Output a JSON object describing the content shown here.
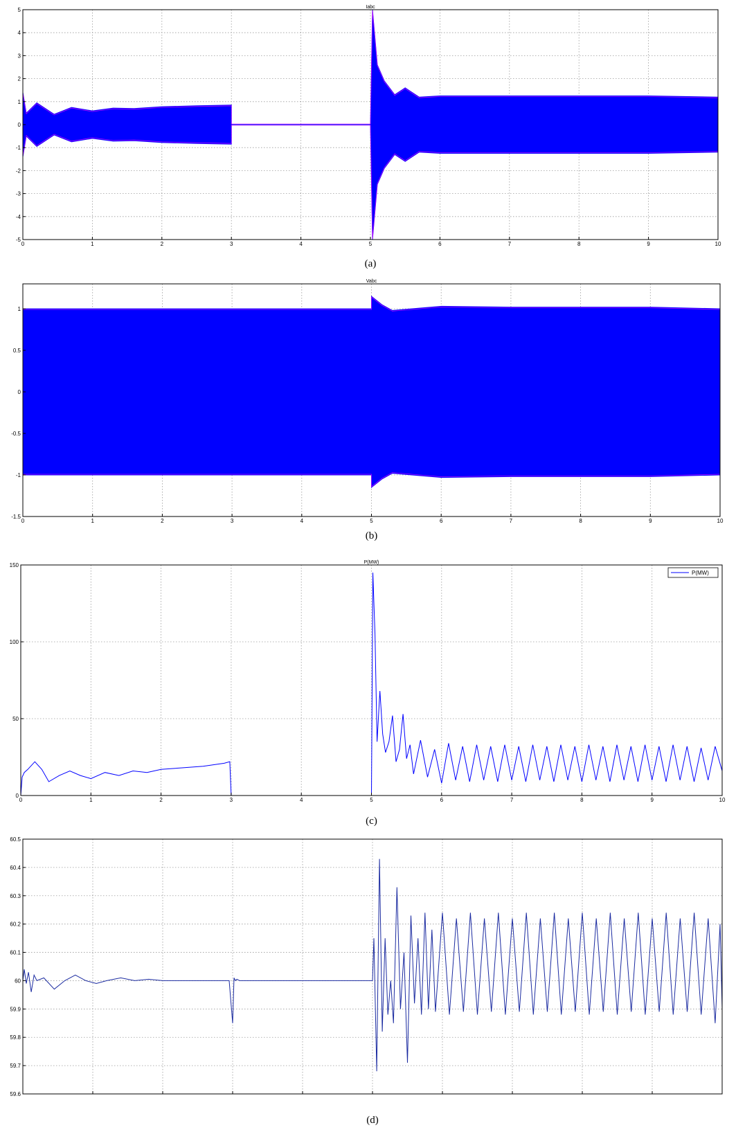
{
  "chart_data": [
    {
      "id": "a",
      "type": "line",
      "title": "Iabc",
      "caption": "(a)",
      "xlim": [
        0,
        10
      ],
      "ylim": [
        -5,
        5
      ],
      "xticks": [
        0,
        1,
        2,
        3,
        4,
        5,
        6,
        7,
        8,
        9,
        10
      ],
      "yticks": [
        -5,
        -4,
        -3,
        -2,
        -1,
        0,
        1,
        2,
        3,
        4,
        5
      ],
      "grid": true,
      "series_colors": [
        "#0000ff",
        "#ff00ff"
      ],
      "x": [
        0,
        0.05,
        0.2,
        0.45,
        0.7,
        1.0,
        1.3,
        1.6,
        2.0,
        2.5,
        3.0,
        3.0,
        5.0,
        5.03,
        5.1,
        5.2,
        5.35,
        5.5,
        5.7,
        6.0,
        7.0,
        8.0,
        9.0,
        10.0
      ],
      "envelope": [
        1.4,
        0.5,
        0.95,
        0.45,
        0.75,
        0.6,
        0.72,
        0.7,
        0.78,
        0.82,
        0.85,
        0,
        0,
        5.0,
        2.6,
        1.9,
        1.3,
        1.6,
        1.2,
        1.25,
        1.25,
        1.25,
        1.25,
        1.2
      ]
    },
    {
      "id": "b",
      "type": "line",
      "title": "Vabc",
      "caption": "(b)",
      "xlim": [
        0,
        10
      ],
      "ylim": [
        -1.5,
        1.3
      ],
      "xticks": [
        0,
        1,
        2,
        3,
        4,
        5,
        6,
        7,
        8,
        9,
        10
      ],
      "yticks": [
        -1.5,
        -1,
        -0.5,
        0,
        0.5,
        1
      ],
      "grid": true,
      "series_colors": [
        "#0000ff",
        "#ff00ff"
      ],
      "x": [
        0,
        5.0,
        5.0,
        5.15,
        5.3,
        6.0,
        7.0,
        8.0,
        9.0,
        10.0
      ],
      "envelope": [
        1.0,
        1.0,
        1.15,
        1.05,
        0.98,
        1.03,
        1.02,
        1.02,
        1.02,
        1.0
      ]
    },
    {
      "id": "c",
      "type": "line",
      "title": "P(MW)",
      "caption": "(c)",
      "xlim": [
        0,
        10
      ],
      "ylim": [
        0,
        150
      ],
      "xticks": [
        0,
        1,
        2,
        3,
        4,
        5,
        6,
        7,
        8,
        9,
        10
      ],
      "yticks": [
        0,
        50,
        100,
        150
      ],
      "grid": true,
      "legend": {
        "position": "top-right",
        "entries": [
          "P(MW)"
        ]
      },
      "series": [
        {
          "name": "P(MW)",
          "color": "#0000ff",
          "x": [
            0,
            0.02,
            0.05,
            0.1,
            0.2,
            0.3,
            0.4,
            0.55,
            0.7,
            0.85,
            1.0,
            1.2,
            1.4,
            1.6,
            1.8,
            2.0,
            2.3,
            2.6,
            2.9,
            2.98,
            3.0,
            3.02,
            5.0,
            5.02,
            5.05,
            5.08,
            5.12,
            5.16,
            5.2,
            5.25,
            5.3,
            5.35,
            5.4,
            5.45,
            5.5,
            5.55,
            5.6,
            5.7,
            5.8,
            5.9,
            6.0,
            6.1,
            6.2,
            6.3,
            6.4,
            6.5,
            6.6,
            6.7,
            6.8,
            6.9,
            7.0,
            7.1,
            7.2,
            7.3,
            7.4,
            7.5,
            7.6,
            7.7,
            7.8,
            7.9,
            8.0,
            8.1,
            8.2,
            8.3,
            8.4,
            8.5,
            8.6,
            8.7,
            8.8,
            8.9,
            9.0,
            9.1,
            9.2,
            9.3,
            9.4,
            9.5,
            9.6,
            9.7,
            9.8,
            9.9,
            10.0
          ],
          "values": [
            0,
            12,
            15,
            17,
            22,
            17,
            9,
            13,
            16,
            13,
            11,
            15,
            13,
            16,
            15,
            17,
            18,
            19,
            21,
            22,
            0,
            0,
            0,
            145,
            105,
            35,
            68,
            40,
            28,
            35,
            52,
            22,
            30,
            53,
            24,
            33,
            14,
            36,
            12,
            30,
            8,
            34,
            10,
            32,
            9,
            33,
            10,
            32,
            9,
            33,
            10,
            32,
            9,
            33,
            10,
            32,
            9,
            33,
            10,
            32,
            9,
            33,
            10,
            32,
            9,
            33,
            10,
            32,
            9,
            33,
            10,
            32,
            9,
            33,
            10,
            32,
            9,
            31,
            10,
            32,
            16
          ]
        }
      ]
    },
    {
      "id": "d",
      "type": "line",
      "title": "",
      "caption": "(d)",
      "xlim": [
        0,
        10
      ],
      "ylim": [
        59.6,
        60.5
      ],
      "xticks": [],
      "yticks": [
        59.6,
        59.7,
        59.8,
        59.9,
        60,
        60.1,
        60.2,
        60.3,
        60.4,
        60.5
      ],
      "ytick_labels": [
        "59.6",
        "59.7",
        "59.8",
        "59.9",
        "60",
        "60.1",
        "60.2",
        "60.3",
        "60.4",
        "60.5"
      ],
      "grid": true,
      "series": [
        {
          "color": "#1a2aa0",
          "x": [
            0,
            0.02,
            0.05,
            0.08,
            0.12,
            0.16,
            0.2,
            0.3,
            0.45,
            0.6,
            0.75,
            0.9,
            1.05,
            1.2,
            1.4,
            1.6,
            1.8,
            2.0,
            2.5,
            2.95,
            3.0,
            3.02,
            3.04,
            3.06,
            3.1,
            3.2,
            5.0,
            5.02,
            5.06,
            5.1,
            5.14,
            5.18,
            5.22,
            5.26,
            5.3,
            5.35,
            5.4,
            5.45,
            5.5,
            5.55,
            5.6,
            5.65,
            5.7,
            5.75,
            5.8,
            5.85,
            5.9,
            6.0,
            6.1,
            6.2,
            6.3,
            6.4,
            6.5,
            6.6,
            6.7,
            6.8,
            6.9,
            7.0,
            7.1,
            7.2,
            7.3,
            7.4,
            7.5,
            7.6,
            7.7,
            7.8,
            7.9,
            8.0,
            8.1,
            8.2,
            8.3,
            8.4,
            8.5,
            8.6,
            8.7,
            8.8,
            8.9,
            9.0,
            9.1,
            9.2,
            9.3,
            9.4,
            9.5,
            9.6,
            9.7,
            9.8,
            9.9,
            9.97,
            10.0
          ],
          "values": [
            60.0,
            60.04,
            59.99,
            60.03,
            59.96,
            60.02,
            60.0,
            60.01,
            59.97,
            60.0,
            60.02,
            60.0,
            59.99,
            60.0,
            60.01,
            60.0,
            60.005,
            60.0,
            60.0,
            60.0,
            59.85,
            60.01,
            60.0,
            60.005,
            60.0,
            60.0,
            60.0,
            60.15,
            59.68,
            60.43,
            59.82,
            60.15,
            59.88,
            60.0,
            59.85,
            60.33,
            59.9,
            60.1,
            59.71,
            60.23,
            59.92,
            60.15,
            59.88,
            60.24,
            59.9,
            60.18,
            59.89,
            60.24,
            59.88,
            60.22,
            59.89,
            60.24,
            59.88,
            60.22,
            59.89,
            60.24,
            59.88,
            60.22,
            59.89,
            60.24,
            59.88,
            60.22,
            59.89,
            60.24,
            59.88,
            60.22,
            59.89,
            60.24,
            59.88,
            60.22,
            59.89,
            60.24,
            59.88,
            60.22,
            59.89,
            60.24,
            59.88,
            60.22,
            59.89,
            60.24,
            59.88,
            60.22,
            59.89,
            60.24,
            59.88,
            60.22,
            59.85,
            60.2,
            59.9
          ]
        }
      ]
    }
  ]
}
